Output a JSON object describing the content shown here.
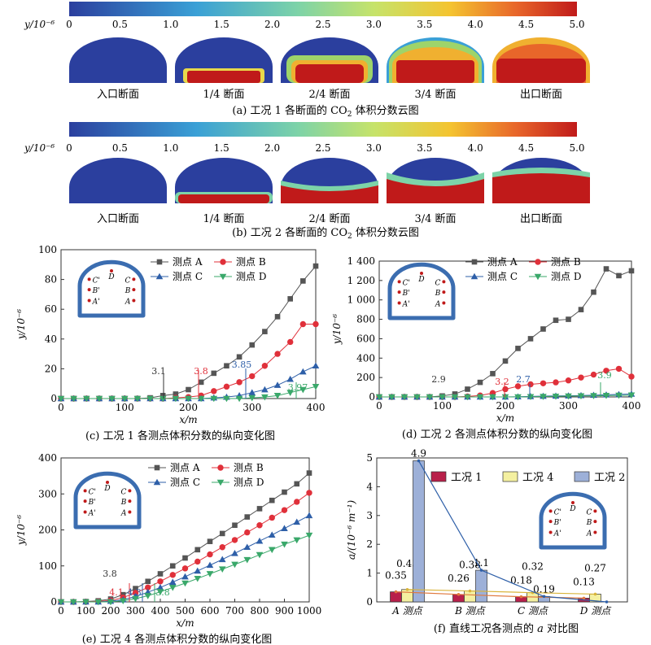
{
  "colors": {
    "A": "#555555",
    "B": "#e0303a",
    "C": "#2e5fa8",
    "D": "#3aa86a",
    "gk1": "#b8204a",
    "gk4": "#f4f0a0",
    "gk2": "#9db0d8",
    "lining": "#3b6db0"
  },
  "contour": {
    "ylabel": "y/10⁻⁶",
    "scale_ticks": [
      "0",
      "0.5",
      "1.0",
      "1.5",
      "2.0",
      "2.5",
      "3.0",
      "3.5",
      "4.0",
      "4.5",
      "5.0"
    ],
    "section_labels": [
      "入口断面",
      "1/4 断面",
      "2/4 断面",
      "3/4 断面",
      "出口断面"
    ],
    "caption_a_pre": "(a) 工况 1 各断面的 CO",
    "caption_a_post": " 体积分数云图",
    "caption_b_pre": "(b) 工况 2 各断面的 CO",
    "caption_b_post": " 体积分数云图",
    "sub": "2"
  },
  "inset": {
    "labels": [
      "C'",
      "D",
      "C",
      "B'",
      "B",
      "A'",
      "A"
    ]
  },
  "legend_items": [
    "测点 A",
    "测点 B",
    "测点 C",
    "测点 D"
  ],
  "chart_data": [
    {
      "panel": "c",
      "type": "line",
      "caption": "(c) 工况 1 各测点体积分数的纵向变化图",
      "xlabel": "x/m",
      "ylabel": "y/10⁻⁶",
      "xlim": [
        0,
        400
      ],
      "ylim": [
        0,
        100
      ],
      "xticks": [
        "0",
        "100",
        "200",
        "300",
        "400"
      ],
      "yticks": [
        "0",
        "20",
        "40",
        "60",
        "80",
        "100"
      ],
      "x": [
        0,
        20,
        40,
        60,
        80,
        100,
        120,
        140,
        160,
        180,
        200,
        220,
        240,
        260,
        280,
        300,
        320,
        340,
        360,
        380,
        400
      ],
      "series": [
        {
          "name": "测点 A",
          "values": [
            0,
            0,
            0,
            0,
            0,
            0,
            0,
            0.5,
            2,
            3,
            6,
            11,
            17,
            22,
            28,
            36,
            45,
            55,
            67,
            79,
            89
          ]
        },
        {
          "name": "测点 B",
          "values": [
            0,
            0,
            0,
            0,
            0,
            0,
            0,
            0,
            0,
            0.5,
            1,
            2,
            5,
            8,
            11,
            15,
            22,
            30,
            38,
            50,
            50
          ]
        },
        {
          "name": "测点 C",
          "values": [
            0,
            0,
            0,
            0,
            0,
            0,
            0,
            0,
            0,
            0,
            0,
            0,
            0.5,
            1,
            2,
            4,
            6,
            9,
            13,
            18,
            22
          ]
        },
        {
          "name": "测点 D",
          "values": [
            0,
            0,
            0,
            0,
            0,
            0,
            0,
            0,
            0,
            0,
            0,
            0,
            0,
            0,
            0,
            0.5,
            1,
            2,
            4,
            6,
            8
          ]
        }
      ],
      "annotations": [
        "3.1",
        "3.8",
        "3.85",
        "3.97"
      ]
    },
    {
      "panel": "d",
      "type": "line",
      "caption": "(d) 工况 2 各测点体积分数的纵向变化图",
      "xlabel": "x/m",
      "ylabel": "y/10⁻⁶",
      "xlim": [
        0,
        400
      ],
      "ylim": [
        0,
        1400
      ],
      "xticks": [
        "0",
        "100",
        "200",
        "300",
        "400"
      ],
      "yticks": [
        "0",
        "200",
        "400",
        "600",
        "800",
        "1 000",
        "1 200",
        "1 400"
      ],
      "x": [
        0,
        20,
        40,
        60,
        80,
        100,
        120,
        140,
        160,
        180,
        200,
        220,
        240,
        260,
        280,
        300,
        320,
        340,
        360,
        380,
        400
      ],
      "series": [
        {
          "name": "测点 A",
          "values": [
            0,
            0,
            0,
            0,
            0,
            10,
            30,
            80,
            150,
            240,
            370,
            500,
            600,
            700,
            790,
            800,
            900,
            1080,
            1320,
            1250,
            1300
          ]
        },
        {
          "name": "测点 B",
          "values": [
            0,
            0,
            0,
            0,
            0,
            0,
            0,
            5,
            15,
            40,
            80,
            110,
            130,
            140,
            150,
            170,
            200,
            230,
            270,
            290,
            210
          ]
        },
        {
          "name": "测点 C",
          "values": [
            0,
            0,
            0,
            0,
            0,
            0,
            0,
            0,
            0,
            0,
            0,
            2,
            5,
            8,
            10,
            12,
            15,
            18,
            22,
            26,
            30
          ]
        },
        {
          "name": "测点 D",
          "values": [
            0,
            0,
            0,
            0,
            0,
            0,
            0,
            0,
            0,
            0,
            0,
            0,
            2,
            4,
            6,
            8,
            10,
            12,
            14,
            16,
            18
          ]
        }
      ],
      "annotations": [
        "2.9",
        "3.2",
        "2.7",
        "3.9"
      ]
    },
    {
      "panel": "e",
      "type": "line",
      "caption": "(e) 工况 4 各测点体积分数的纵向变化图",
      "xlabel": "x/m",
      "ylabel": "y/10⁻⁶",
      "xlim": [
        0,
        1000
      ],
      "ylim": [
        0,
        400
      ],
      "xticks": [
        "0",
        "100",
        "200",
        "300",
        "400",
        "500",
        "600",
        "700",
        "800",
        "900",
        "1000"
      ],
      "yticks": [
        "0",
        "100",
        "200",
        "300",
        "400"
      ],
      "x": [
        0,
        50,
        100,
        150,
        200,
        250,
        300,
        350,
        400,
        450,
        500,
        550,
        600,
        650,
        700,
        750,
        800,
        850,
        900,
        950,
        1000
      ],
      "series": [
        {
          "name": "测点 A",
          "values": [
            0,
            0,
            1,
            3,
            8,
            20,
            37,
            57,
            78,
            100,
            122,
            145,
            168,
            190,
            213,
            236,
            259,
            282,
            305,
            328,
            358
          ]
        },
        {
          "name": "测点 B",
          "values": [
            0,
            0,
            0,
            1,
            4,
            12,
            25,
            40,
            57,
            75,
            93,
            112,
            132,
            152,
            172,
            193,
            213,
            234,
            255,
            278,
            303
          ]
        },
        {
          "name": "测点 C",
          "values": [
            0,
            0,
            0,
            0,
            2,
            6,
            15,
            27,
            40,
            55,
            70,
            86,
            102,
            118,
            135,
            152,
            169,
            186,
            204,
            222,
            240
          ]
        },
        {
          "name": "测点 D",
          "values": [
            0,
            0,
            0,
            0,
            0,
            3,
            9,
            17,
            28,
            40,
            52,
            65,
            78,
            91,
            104,
            117,
            131,
            145,
            160,
            172,
            185
          ]
        }
      ],
      "annotations": [
        "3.8",
        "4.1",
        "4.3",
        "3.8"
      ]
    },
    {
      "panel": "f",
      "type": "bar",
      "caption_pre": "(f) 直线工况各测点的 ",
      "caption_italic": "a",
      "caption_post": " 对比图",
      "ylabel": "a/(10⁻⁶ m⁻¹)",
      "ylim": [
        0,
        5
      ],
      "yticks": [
        "0",
        "1",
        "2",
        "3",
        "4",
        "5"
      ],
      "categories": [
        "A 测点",
        "B 测点",
        "C 测点",
        "D 测点"
      ],
      "series": [
        {
          "name": "工况 1",
          "values": [
            0.35,
            0.26,
            0.18,
            0.13
          ]
        },
        {
          "name": "工况 4",
          "values": [
            0.43,
            0.38,
            0.32,
            0.27
          ]
        },
        {
          "name": "工况 2",
          "values": [
            4.9,
            1.1,
            0.19,
            0.0
          ]
        }
      ],
      "labels": {
        "gk1": [
          "0.35",
          "0.26",
          "0.18",
          "0.13"
        ],
        "gk4": [
          "0.43",
          "0.38",
          "0.32",
          "0.27"
        ],
        "gk2": [
          "4.9",
          "1.1",
          "0.19",
          ""
        ]
      }
    }
  ]
}
